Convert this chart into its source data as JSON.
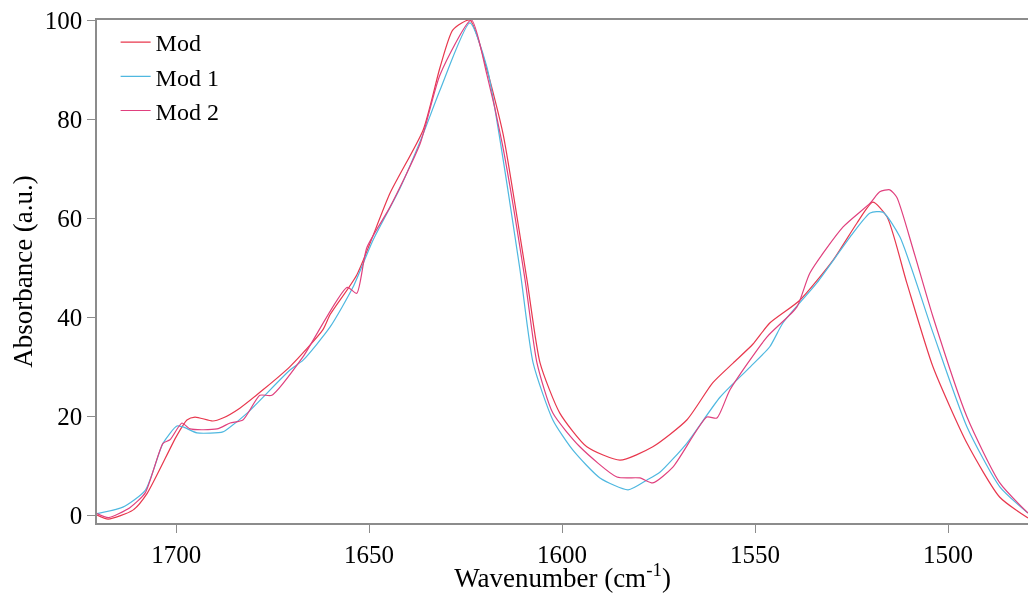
{
  "chart_data": {
    "type": "line",
    "xlabel": "Wavenumber (cm$^{-1}$)",
    "ylabel": "Absorbance (a.u.)",
    "xlim": [
      1720.5,
      1479.3
    ],
    "ylim": [
      -1.6,
      100
    ],
    "xticks": [
      1700,
      1650,
      1600,
      1550,
      1500
    ],
    "yticks": [
      0,
      20,
      40,
      60,
      80,
      100
    ],
    "legend": "top left",
    "series": [
      {
        "name": "Mod",
        "color": "#e8374d",
        "x": [
          1720.5,
          1717.6,
          1711.2,
          1707.5,
          1700,
          1697.2,
          1695.1,
          1690.5,
          1687.9,
          1683.5,
          1677.5,
          1670.5,
          1662,
          1660.1,
          1653.2,
          1644.6,
          1636,
          1631.6,
          1628.3,
          1623.9,
          1619.5,
          1615.3,
          1609.1,
          1605.7,
          1600.6,
          1593.6,
          1585,
          1576.5,
          1567.7,
          1561,
          1555.7,
          1550.6,
          1546.2,
          1538.4,
          1529.8,
          1523.6,
          1519.5,
          1515.8,
          1510.7,
          1503.9,
          1495.1,
          1486.6,
          1479.3
        ],
        "values": [
          0.0,
          -0.8,
          1.0,
          4.4,
          15.8,
          19.2,
          19.8,
          19.0,
          19.6,
          21.6,
          25.3,
          30,
          37.4,
          40.5,
          48.5,
          65,
          77.8,
          90.5,
          98,
          100,
          90,
          77,
          47.5,
          30.7,
          20.6,
          13.8,
          11.1,
          13.8,
          19.2,
          26.7,
          30.7,
          34.5,
          38.8,
          43.4,
          51.5,
          59,
          63.2,
          60.2,
          46.9,
          29.9,
          14.5,
          3.6,
          -0.6
        ]
      },
      {
        "name": "Mod 1",
        "color": "#4fb8e0",
        "x": [
          1720.5,
          1713.8,
          1708,
          1703.4,
          1699.8,
          1698.2,
          1694.6,
          1687.9,
          1686,
          1681.6,
          1670.5,
          1667.1,
          1660.1,
          1654.2,
          1649,
          1642,
          1636,
          1631.6,
          1623.9,
          1619.5,
          1611,
          1607.5,
          1602.4,
          1597.2,
          1590.2,
          1582.9,
          1578,
          1574.6,
          1567.7,
          1559.1,
          1551.3,
          1546.2,
          1542.8,
          1534,
          1524.6,
          1520.2,
          1516.9,
          1512.5,
          1503.9,
          1495.1,
          1486.6,
          1479.3
        ],
        "values": [
          0.3,
          1.6,
          5,
          14.5,
          18,
          17.8,
          16.6,
          16.8,
          17.8,
          20.6,
          29.3,
          31.3,
          38,
          46,
          55.5,
          66,
          77,
          85.9,
          99.4,
          90.5,
          50,
          30.7,
          19.2,
          13.1,
          7.5,
          5.1,
          7.1,
          8.7,
          14.5,
          23.8,
          29.9,
          34,
          38.8,
          46.9,
          57,
          61,
          61.2,
          56.2,
          36.8,
          17.8,
          5.7,
          0.4
        ]
      },
      {
        "name": "Mod 2",
        "color": "#e0407e",
        "x": [
          1720.5,
          1717.5,
          1712,
          1708,
          1703.4,
          1701.6,
          1698.5,
          1696.4,
          1689.4,
          1686,
          1682.7,
          1678.3,
          1675.2,
          1667.1,
          1655.7,
          1653.2,
          1650.6,
          1644.6,
          1636.8,
          1631.6,
          1623.5,
          1619.5,
          1615.5,
          1609.6,
          1606.5,
          1602.4,
          1595.4,
          1585.8,
          1579.8,
          1576.5,
          1571.3,
          1562.5,
          1559.9,
          1556.5,
          1546.9,
          1539.2,
          1535.8,
          1527.2,
          1520.2,
          1517.7,
          1515.1,
          1513.3,
          1509,
          1503.9,
          1495.1,
          1486.6,
          1479.3
        ],
        "values": [
          0.3,
          -0.5,
          1.5,
          4.5,
          14.5,
          15.2,
          18.6,
          17.4,
          17.4,
          18.6,
          19.2,
          24.2,
          24.2,
          32,
          46,
          44.8,
          54,
          62.2,
          75,
          89,
          100,
          89,
          75,
          47.5,
          30.7,
          20.6,
          13.8,
          7.7,
          7.5,
          6.5,
          9.7,
          19.8,
          19.6,
          25.3,
          36,
          42,
          48.9,
          58.2,
          63,
          65.3,
          65.7,
          64.2,
          53.5,
          40,
          19.8,
          6.5,
          0.4
        ]
      }
    ]
  }
}
